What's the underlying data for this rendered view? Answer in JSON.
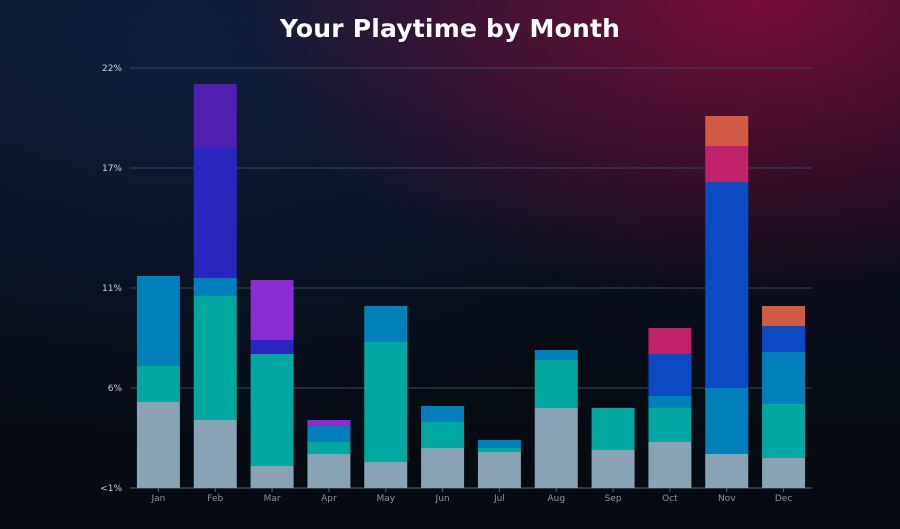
{
  "chart_data": {
    "type": "bar",
    "stacked": true,
    "title": "Your Playtime by Month",
    "xlabel": "",
    "ylabel": "",
    "categories": [
      "Jan",
      "Feb",
      "Mar",
      "Apr",
      "May",
      "Jun",
      "Jul",
      "Aug",
      "Sep",
      "Oct",
      "Nov",
      "Dec"
    ],
    "y_ticks": [
      {
        "value": 1,
        "label": "<1%"
      },
      {
        "value": 6,
        "label": "6%"
      },
      {
        "value": 11,
        "label": "11%"
      },
      {
        "value": 17,
        "label": "17%"
      },
      {
        "value": 22,
        "label": "22%"
      }
    ],
    "ylim": [
      1,
      22
    ],
    "grid": true,
    "series": [
      {
        "color": "#8aa3b4",
        "values": [
          4.3,
          3.4,
          1.1,
          1.7,
          1.3,
          2.0,
          1.8,
          4.0,
          1.9,
          2.3,
          1.7,
          1.5
        ]
      },
      {
        "color": "#00a89f",
        "values": [
          1.8,
          6.2,
          5.6,
          0.6,
          6.0,
          1.3,
          0.2,
          2.4,
          2.1,
          1.7,
          0.0,
          2.7
        ]
      },
      {
        "color": "#0080b8",
        "values": [
          4.5,
          0.9,
          0.0,
          0.8,
          1.8,
          0.8,
          0.4,
          0.5,
          0.0,
          0.6,
          3.3,
          2.6
        ]
      },
      {
        "color": "#0c4ac4",
        "values": [
          0.0,
          0.0,
          0.0,
          0.0,
          0.0,
          0.0,
          0.0,
          0.0,
          0.0,
          2.1,
          10.3,
          1.3
        ]
      },
      {
        "color": "#2a26bd",
        "values": [
          0.0,
          6.5,
          0.7,
          0.0,
          0.0,
          0.0,
          0.0,
          0.0,
          0.0,
          0.0,
          0.0,
          0.0
        ]
      },
      {
        "color": "#4e1fb0",
        "values": [
          0.0,
          3.2,
          0.0,
          0.0,
          0.0,
          0.0,
          0.0,
          0.0,
          0.0,
          0.0,
          0.0,
          0.0
        ]
      },
      {
        "color": "#8a2cd0",
        "values": [
          0.0,
          0.0,
          3.0,
          0.3,
          0.0,
          0.0,
          0.0,
          0.0,
          0.0,
          0.0,
          0.0,
          0.0
        ]
      },
      {
        "color": "#c0226a",
        "values": [
          0.0,
          0.0,
          0.0,
          0.0,
          0.0,
          0.0,
          0.0,
          0.0,
          0.0,
          1.3,
          1.8,
          0.0
        ]
      },
      {
        "color": "#d35a45",
        "values": [
          0.0,
          0.0,
          0.0,
          0.0,
          0.0,
          0.0,
          0.0,
          0.0,
          0.0,
          0.0,
          1.5,
          1.0
        ]
      }
    ],
    "colors": {
      "gridline": "#3c4656",
      "axis_text": "#c9d1dc",
      "category_text": "#8a94a2",
      "title": "#ffffff"
    }
  }
}
